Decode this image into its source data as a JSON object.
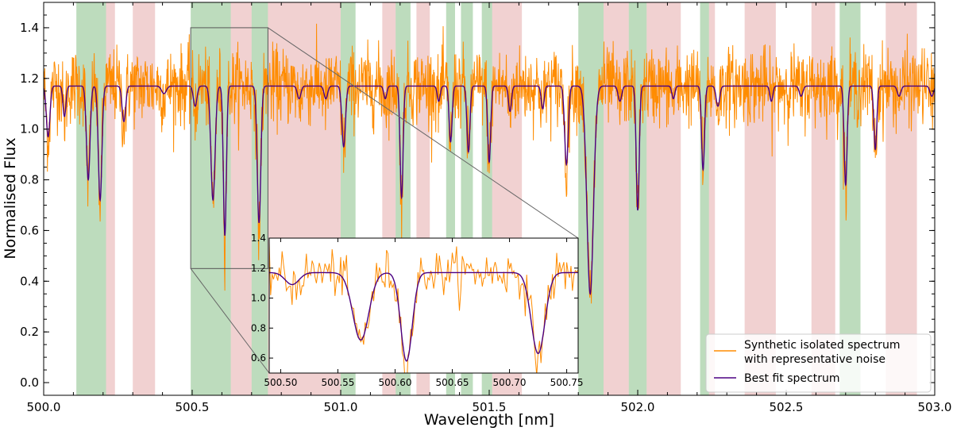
{
  "chart_data": {
    "type": "line",
    "xlabel": "Wavelength [nm]",
    "ylabel": "Normalised Flux",
    "xlim": [
      500.0,
      503.0
    ],
    "ylim": [
      -0.05,
      1.5
    ],
    "x_ticks": [
      "500.0",
      "500.5",
      "501.0",
      "501.5",
      "502.0",
      "502.5",
      "503.0"
    ],
    "y_ticks": [
      "0.0",
      "0.2",
      "0.4",
      "0.6",
      "0.8",
      "1.0",
      "1.2",
      "1.4"
    ],
    "continuum": 1.17,
    "absorption_lines": [
      {
        "center": 500.015,
        "depth": 0.2,
        "width": 0.006
      },
      {
        "center": 500.07,
        "depth": 0.12,
        "width": 0.005
      },
      {
        "center": 500.15,
        "depth": 0.37,
        "width": 0.006
      },
      {
        "center": 500.19,
        "depth": 0.45,
        "width": 0.006
      },
      {
        "center": 500.27,
        "depth": 0.14,
        "width": 0.006
      },
      {
        "center": 500.405,
        "depth": 0.03,
        "width": 0.008
      },
      {
        "center": 500.51,
        "depth": 0.08,
        "width": 0.006
      },
      {
        "center": 500.57,
        "depth": 0.45,
        "width": 0.007
      },
      {
        "center": 500.61,
        "depth": 0.59,
        "width": 0.005
      },
      {
        "center": 500.725,
        "depth": 0.54,
        "width": 0.006
      },
      {
        "center": 500.86,
        "depth": 0.05,
        "width": 0.006
      },
      {
        "center": 500.95,
        "depth": 0.05,
        "width": 0.006
      },
      {
        "center": 501.01,
        "depth": 0.24,
        "width": 0.006
      },
      {
        "center": 501.15,
        "depth": 0.05,
        "width": 0.005
      },
      {
        "center": 501.205,
        "depth": 0.44,
        "width": 0.005
      },
      {
        "center": 501.33,
        "depth": 0.06,
        "width": 0.005
      },
      {
        "center": 501.37,
        "depth": 0.22,
        "width": 0.005
      },
      {
        "center": 501.43,
        "depth": 0.26,
        "width": 0.005
      },
      {
        "center": 501.5,
        "depth": 0.3,
        "width": 0.005
      },
      {
        "center": 501.57,
        "depth": 0.1,
        "width": 0.005
      },
      {
        "center": 501.68,
        "depth": 0.09,
        "width": 0.005
      },
      {
        "center": 501.76,
        "depth": 0.31,
        "width": 0.006
      },
      {
        "center": 501.84,
        "depth": 0.82,
        "width": 0.011
      },
      {
        "center": 501.94,
        "depth": 0.06,
        "width": 0.006
      },
      {
        "center": 502.0,
        "depth": 0.49,
        "width": 0.005
      },
      {
        "center": 502.12,
        "depth": 0.05,
        "width": 0.005
      },
      {
        "center": 502.22,
        "depth": 0.33,
        "width": 0.005
      },
      {
        "center": 502.27,
        "depth": 0.08,
        "width": 0.006
      },
      {
        "center": 502.45,
        "depth": 0.06,
        "width": 0.005
      },
      {
        "center": 502.55,
        "depth": 0.04,
        "width": 0.006
      },
      {
        "center": 502.7,
        "depth": 0.39,
        "width": 0.005
      },
      {
        "center": 502.8,
        "depth": 0.25,
        "width": 0.005
      },
      {
        "center": 502.88,
        "depth": 0.04,
        "width": 0.006
      },
      {
        "center": 502.99,
        "depth": 0.04,
        "width": 0.006
      }
    ],
    "shaded_regions": [
      {
        "x0": 500.11,
        "x1": 500.21,
        "color": "green"
      },
      {
        "x0": 500.21,
        "x1": 500.24,
        "color": "red"
      },
      {
        "x0": 500.3,
        "x1": 500.375,
        "color": "red"
      },
      {
        "x0": 500.495,
        "x1": 500.63,
        "color": "green"
      },
      {
        "x0": 500.63,
        "x1": 500.7,
        "color": "red"
      },
      {
        "x0": 500.7,
        "x1": 500.755,
        "color": "green"
      },
      {
        "x0": 500.755,
        "x1": 501.0,
        "color": "red"
      },
      {
        "x0": 501.0,
        "x1": 501.05,
        "color": "green"
      },
      {
        "x0": 501.14,
        "x1": 501.185,
        "color": "red"
      },
      {
        "x0": 501.185,
        "x1": 501.235,
        "color": "green"
      },
      {
        "x0": 501.255,
        "x1": 501.3,
        "color": "red"
      },
      {
        "x0": 501.355,
        "x1": 501.385,
        "color": "green"
      },
      {
        "x0": 501.405,
        "x1": 501.445,
        "color": "green"
      },
      {
        "x0": 501.475,
        "x1": 501.51,
        "color": "green"
      },
      {
        "x0": 501.51,
        "x1": 501.61,
        "color": "red"
      },
      {
        "x0": 501.8,
        "x1": 501.885,
        "color": "green"
      },
      {
        "x0": 501.885,
        "x1": 501.97,
        "color": "red"
      },
      {
        "x0": 501.97,
        "x1": 502.03,
        "color": "green"
      },
      {
        "x0": 502.03,
        "x1": 502.145,
        "color": "red"
      },
      {
        "x0": 502.21,
        "x1": 502.24,
        "color": "green"
      },
      {
        "x0": 502.24,
        "x1": 502.26,
        "color": "red"
      },
      {
        "x0": 502.36,
        "x1": 502.465,
        "color": "red"
      },
      {
        "x0": 502.585,
        "x1": 502.665,
        "color": "red"
      },
      {
        "x0": 502.68,
        "x1": 502.75,
        "color": "green"
      },
      {
        "x0": 502.835,
        "x1": 502.94,
        "color": "red"
      }
    ],
    "series": [
      {
        "name": "Synthetic isolated spectrum\nwith representative noise",
        "color": "#ff8c00",
        "noise_sigma": 0.075
      },
      {
        "name": "Best fit spectrum",
        "color": "#4b0082"
      }
    ],
    "legend": {
      "entries": [
        "Synthetic isolated spectrum",
        "with representative noise",
        "Best fit spectrum"
      ],
      "placement": "lower-right"
    },
    "inset": {
      "xlim": [
        500.49,
        500.76
      ],
      "ylim": [
        0.5,
        1.4
      ],
      "x_ticks": [
        "500.50",
        "500.55",
        "500.60",
        "500.65",
        "500.70",
        "500.75"
      ],
      "y_ticks": [
        "0.6",
        "0.8",
        "1.0",
        "1.2",
        "1.4"
      ],
      "zoom_box": {
        "x0": 500.495,
        "x1": 500.755,
        "y0": 0.45,
        "y1": 1.4
      }
    }
  },
  "colors": {
    "green_region": "#238b23",
    "red_region": "#c84646",
    "observed": "#ff8c00",
    "model": "#4b0082"
  }
}
